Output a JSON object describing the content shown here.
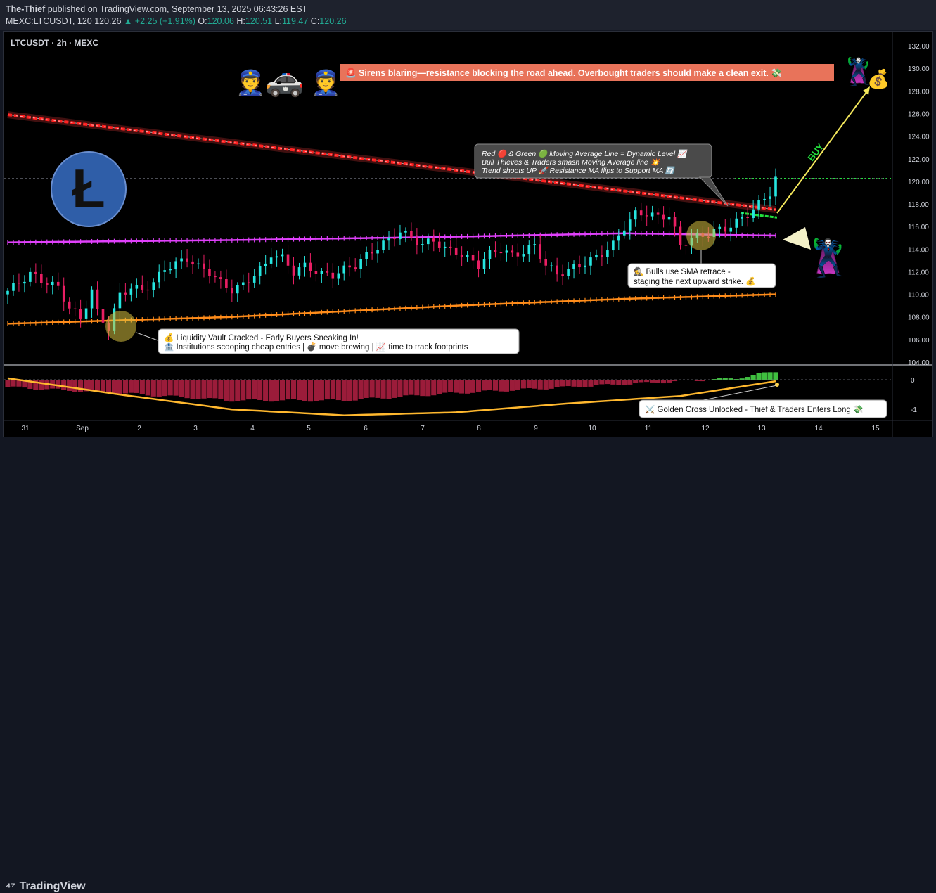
{
  "header": {
    "author": "The-Thief",
    "published": "published on TradingView.com, September 13, 2025 06:43:26 EST",
    "symbol_line": "MEXC:LTCUSDT, 120",
    "price": "120.26",
    "change": "▲ +2.25 (+1.91%)",
    "o_label": "O:",
    "o_val": "120.06",
    "h_label": "H:",
    "h_val": "120.51",
    "l_label": "L:",
    "l_val": "119.47",
    "c_label": "C:",
    "c_val": "120.26"
  },
  "chart_title": "LTCUSDT · 2h · MEXC",
  "annotations": {
    "sirens": "🚨 Sirens blaring—resistance blocking the road ahead. Overbought traders should make a clean exit. 💸",
    "ma_box_1": "Red 🔴 & Green 🟢 Moving Average Line = Dynamic Level 📈",
    "ma_box_2": "Bull Thieves & Traders smash Moving Average line 💥",
    "ma_box_3": "Trend shoots UP 🚀 Resistance MA flips to Support MA 🔄",
    "sma_1": "🕵️ Bulls use SMA retrace -",
    "sma_2": "staging the next upward strike. 💰",
    "vault_1": "💰 Liquidity Vault Cracked - Early Buyers Sneaking In!",
    "vault_2": "🏦 Institutions scooping cheap entries | 💣 move brewing | 📈 time to track footprints",
    "golden": "⚔️ Golden Cross Unlocked - Thief & Traders Enters Long 💸",
    "buy": "BUY"
  },
  "colors": {
    "bull": "#26e6e0",
    "bear": "#e91e63",
    "ma_red": "#ff2a2a",
    "ma_magenta": "#e040fb",
    "ma_orange": "#ff8c1a",
    "accent_green": "#22ab94"
  },
  "footer": {
    "logo": "TradingView"
  },
  "chart_data": {
    "type": "candlestick",
    "x_ticks": [
      "31",
      "Sep",
      "2",
      "3",
      "4",
      "5",
      "6",
      "7",
      "8",
      "9",
      "10",
      "11",
      "12",
      "13",
      "14",
      "15"
    ],
    "y_ticks": [
      "132.00",
      "130.00",
      "128.00",
      "126.00",
      "124.00",
      "122.00",
      "120.00",
      "118.00",
      "116.00",
      "114.00",
      "112.00",
      "110.00",
      "108.00",
      "106.00",
      "104.00"
    ],
    "ylim": [
      104,
      133
    ],
    "last_price": 120.26,
    "close_path": [
      [
        0,
        110.3
      ],
      [
        4,
        111.8
      ],
      [
        7,
        111.0
      ],
      [
        9,
        110.6
      ],
      [
        11,
        108.8
      ],
      [
        13,
        107.9
      ],
      [
        15,
        110.3
      ],
      [
        16,
        108.4
      ],
      [
        18,
        107.0
      ],
      [
        20,
        110.0
      ],
      [
        22,
        110.6
      ],
      [
        24,
        110.4
      ],
      [
        26,
        111.0
      ],
      [
        28,
        112.3
      ],
      [
        30,
        112.7
      ],
      [
        32,
        113.2
      ],
      [
        34,
        112.4
      ],
      [
        36,
        112.0
      ],
      [
        38,
        111.0
      ],
      [
        40,
        110.4
      ],
      [
        42,
        110.8
      ],
      [
        44,
        111.8
      ],
      [
        46,
        112.6
      ],
      [
        47,
        113.6
      ],
      [
        49,
        113.2
      ],
      [
        51,
        112.0
      ],
      [
        53,
        112.5
      ],
      [
        56,
        111.8
      ],
      [
        58,
        111.7
      ],
      [
        60,
        112.2
      ],
      [
        62,
        112.6
      ],
      [
        64,
        113.4
      ],
      [
        66,
        114.2
      ],
      [
        68,
        114.8
      ],
      [
        70,
        115.6
      ],
      [
        72,
        115.0
      ],
      [
        74,
        114.4
      ],
      [
        76,
        114.8
      ],
      [
        78,
        114.0
      ],
      [
        80,
        113.8
      ],
      [
        82,
        113.2
      ],
      [
        84,
        112.6
      ],
      [
        86,
        113.6
      ],
      [
        88,
        114.0
      ],
      [
        90,
        113.4
      ],
      [
        92,
        113.8
      ],
      [
        94,
        114.3
      ],
      [
        96,
        112.6
      ],
      [
        98,
        111.8
      ],
      [
        100,
        112.1
      ],
      [
        102,
        112.6
      ],
      [
        104,
        113.0
      ],
      [
        106,
        113.6
      ],
      [
        108,
        114.4
      ],
      [
        110,
        116.0
      ],
      [
        112,
        117.1
      ],
      [
        114,
        117.2
      ],
      [
        116,
        116.8
      ],
      [
        118,
        117.0
      ],
      [
        120,
        114.3
      ],
      [
        122,
        115.0
      ],
      [
        124,
        115.2
      ],
      [
        126,
        115.6
      ],
      [
        128,
        115.8
      ],
      [
        130,
        116.4
      ],
      [
        132,
        117.1
      ],
      [
        134,
        118.0
      ],
      [
        136,
        119.0
      ],
      [
        137,
        120.26
      ]
    ],
    "volume_hist": [
      [
        0,
        -0.25
      ],
      [
        20,
        -0.45
      ],
      [
        40,
        -0.7
      ],
      [
        60,
        -0.7
      ],
      [
        80,
        -0.45
      ],
      [
        100,
        -0.25
      ],
      [
        120,
        -0.05
      ],
      [
        130,
        0.05
      ],
      [
        137,
        0.28
      ]
    ],
    "signal_line": [
      [
        0,
        0.05
      ],
      [
        20,
        -0.5
      ],
      [
        40,
        -1.0
      ],
      [
        60,
        -1.2
      ],
      [
        80,
        -1.1
      ],
      [
        100,
        -0.8
      ],
      [
        120,
        -0.55
      ],
      [
        137,
        -0.05
      ]
    ],
    "series": [
      {
        "name": "Red MA",
        "values": [
          [
            0,
            125.9
          ],
          [
            137,
            117.5
          ]
        ]
      },
      {
        "name": "Magenta MA",
        "values": [
          [
            0,
            114.6
          ],
          [
            40,
            114.8
          ],
          [
            80,
            115.1
          ],
          [
            110,
            115.4
          ],
          [
            137,
            115.2
          ]
        ]
      },
      {
        "name": "Orange MA",
        "values": [
          [
            0,
            107.4
          ],
          [
            40,
            108.0
          ],
          [
            80,
            109.0
          ],
          [
            110,
            109.6
          ],
          [
            137,
            110.0
          ]
        ]
      }
    ],
    "osc_ticks": [
      "0",
      "-1"
    ],
    "osc_ylim": [
      -1.35,
      0.45
    ]
  }
}
